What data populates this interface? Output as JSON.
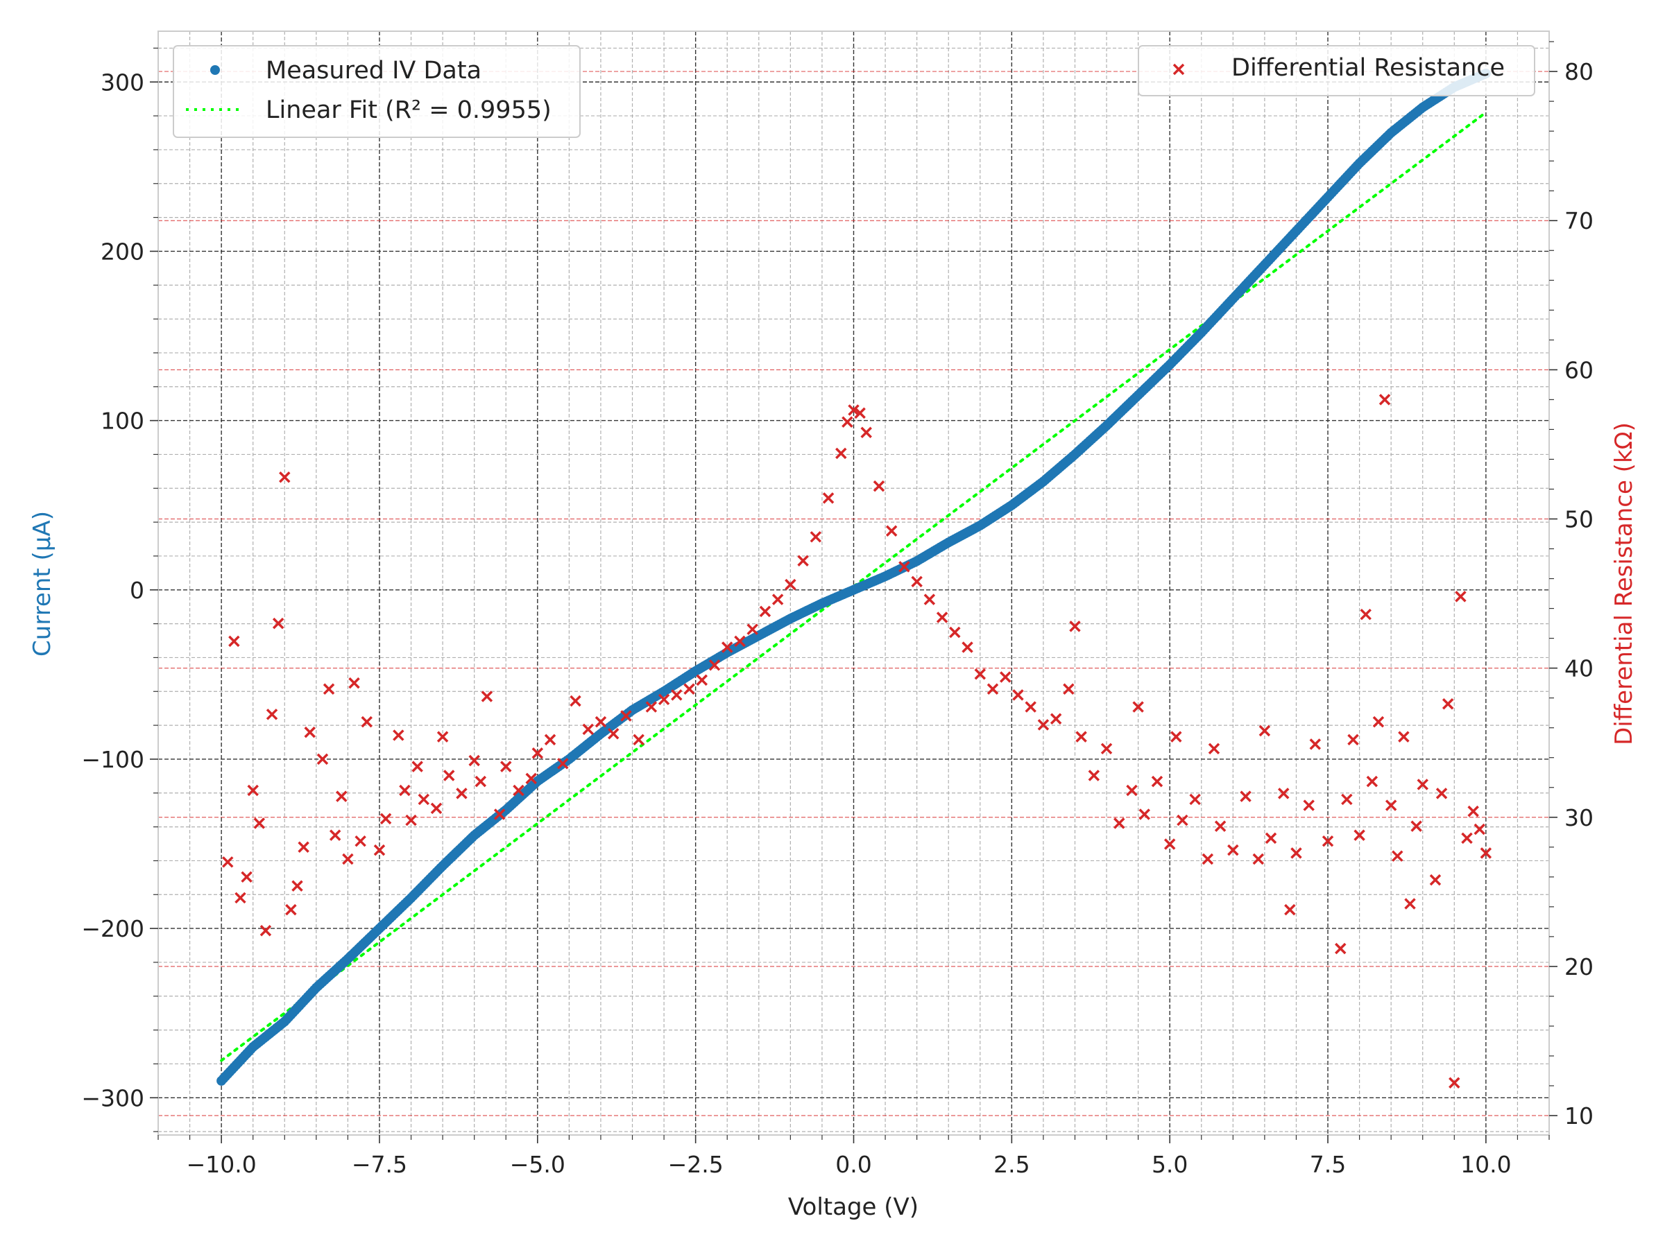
{
  "chart_data": {
    "type": "scatter",
    "xlabel": "Voltage (V)",
    "ylabel": "Current (μA)",
    "y2label": "Differential Resistance (kΩ)",
    "xlim": [
      -11.0,
      11.0
    ],
    "ylim": [
      -322,
      330
    ],
    "y2lim": [
      8.7,
      82.7
    ],
    "xticks": [
      -10.0,
      -7.5,
      -5.0,
      -2.5,
      0.0,
      2.5,
      5.0,
      7.5,
      10.0
    ],
    "xtick_labels": [
      "−10.0",
      "−7.5",
      "−5.0",
      "−2.5",
      "0.0",
      "2.5",
      "5.0",
      "7.5",
      "10.0"
    ],
    "yticks": [
      -300,
      -200,
      -100,
      0,
      100,
      200,
      300
    ],
    "ytick_labels": [
      "−300",
      "−200",
      "−100",
      "0",
      "100",
      "200",
      "300"
    ],
    "y2ticks": [
      10,
      20,
      30,
      40,
      50,
      60,
      70,
      80
    ],
    "y2tick_labels": [
      "10",
      "20",
      "30",
      "40",
      "50",
      "60",
      "70",
      "80"
    ],
    "grid": true,
    "colors": {
      "iv": "#1f77b4",
      "fit": "#00ff00",
      "resistance": "#d62728",
      "major_grid": "#333333",
      "minor_grid": "#b0b0b0",
      "frame": "#cccccc"
    },
    "legend_left": {
      "position": "top-left",
      "entries": [
        {
          "label": "Measured IV Data",
          "marker": "dot"
        },
        {
          "label": "Linear Fit (R² = 0.9955)",
          "marker": "dotted-line"
        }
      ]
    },
    "legend_right": {
      "position": "top-right",
      "entries": [
        {
          "label": "Differential Resistance",
          "marker": "x"
        }
      ]
    },
    "series": [
      {
        "name": "Measured IV Data",
        "kind": "scatter-dense",
        "axis": "left",
        "points": [
          [
            -10.0,
            -290
          ],
          [
            -9.5,
            -270
          ],
          [
            -9.0,
            -255
          ],
          [
            -8.5,
            -235
          ],
          [
            -8.0,
            -218
          ],
          [
            -7.5,
            -200
          ],
          [
            -7.0,
            -182
          ],
          [
            -6.5,
            -163
          ],
          [
            -6.0,
            -145
          ],
          [
            -5.5,
            -130
          ],
          [
            -5.0,
            -113
          ],
          [
            -4.5,
            -100
          ],
          [
            -4.0,
            -85
          ],
          [
            -3.5,
            -71
          ],
          [
            -3.0,
            -60
          ],
          [
            -2.5,
            -48
          ],
          [
            -2.0,
            -37
          ],
          [
            -1.5,
            -27
          ],
          [
            -1.0,
            -17
          ],
          [
            -0.5,
            -8
          ],
          [
            0.0,
            0
          ],
          [
            0.5,
            8
          ],
          [
            1.0,
            17
          ],
          [
            1.5,
            28
          ],
          [
            2.0,
            38
          ],
          [
            2.5,
            50
          ],
          [
            3.0,
            64
          ],
          [
            3.5,
            80
          ],
          [
            4.0,
            97
          ],
          [
            4.5,
            115
          ],
          [
            5.0,
            133
          ],
          [
            5.5,
            152
          ],
          [
            6.0,
            172
          ],
          [
            6.5,
            192
          ],
          [
            7.0,
            212
          ],
          [
            7.5,
            232
          ],
          [
            8.0,
            252
          ],
          [
            8.5,
            270
          ],
          [
            9.0,
            285
          ],
          [
            9.5,
            297
          ],
          [
            10.0,
            305
          ]
        ]
      },
      {
        "name": "Linear Fit (R² = 0.9955)",
        "kind": "line",
        "axis": "left",
        "points": [
          [
            -10.0,
            -278
          ],
          [
            10.0,
            282
          ]
        ]
      },
      {
        "name": "Differential Resistance",
        "kind": "scatter-x",
        "axis": "right",
        "points": [
          [
            -9.9,
            27
          ],
          [
            -9.8,
            41.8
          ],
          [
            -9.7,
            24.6
          ],
          [
            -9.6,
            26
          ],
          [
            -9.5,
            31.8
          ],
          [
            -9.4,
            29.6
          ],
          [
            -9.3,
            22.4
          ],
          [
            -9.2,
            36.9
          ],
          [
            -9.1,
            43
          ],
          [
            -9.0,
            52.8
          ],
          [
            -8.9,
            23.8
          ],
          [
            -8.8,
            25.4
          ],
          [
            -8.7,
            28
          ],
          [
            -8.6,
            35.7
          ],
          [
            -8.4,
            33.9
          ],
          [
            -8.3,
            38.6
          ],
          [
            -8.2,
            28.8
          ],
          [
            -8.1,
            31.4
          ],
          [
            -8.0,
            27.2
          ],
          [
            -7.9,
            39
          ],
          [
            -7.8,
            28.4
          ],
          [
            -7.7,
            36.4
          ],
          [
            -7.5,
            27.8
          ],
          [
            -7.4,
            29.9
          ],
          [
            -7.2,
            35.5
          ],
          [
            -7.1,
            31.8
          ],
          [
            -7.0,
            29.8
          ],
          [
            -6.9,
            33.4
          ],
          [
            -6.8,
            31.2
          ],
          [
            -6.6,
            30.6
          ],
          [
            -6.5,
            35.4
          ],
          [
            -6.4,
            32.8
          ],
          [
            -6.2,
            31.6
          ],
          [
            -6.0,
            33.8
          ],
          [
            -5.9,
            32.4
          ],
          [
            -5.8,
            38.1
          ],
          [
            -5.6,
            30.2
          ],
          [
            -5.5,
            33.4
          ],
          [
            -5.3,
            31.8
          ],
          [
            -5.1,
            32.6
          ],
          [
            -5.0,
            34.3
          ],
          [
            -4.8,
            35.2
          ],
          [
            -4.6,
            33.6
          ],
          [
            -4.4,
            37.8
          ],
          [
            -4.2,
            35.9
          ],
          [
            -4.0,
            36.4
          ],
          [
            -3.8,
            35.6
          ],
          [
            -3.6,
            36.8
          ],
          [
            -3.4,
            35.2
          ],
          [
            -3.2,
            37.4
          ],
          [
            -3.0,
            37.9
          ],
          [
            -2.8,
            38.2
          ],
          [
            -2.6,
            38.6
          ],
          [
            -2.4,
            39.2
          ],
          [
            -2.2,
            40.2
          ],
          [
            -2.0,
            41.4
          ],
          [
            -1.8,
            41.8
          ],
          [
            -1.6,
            42.6
          ],
          [
            -1.4,
            43.8
          ],
          [
            -1.2,
            44.6
          ],
          [
            -1.0,
            45.6
          ],
          [
            -0.8,
            47.2
          ],
          [
            -0.6,
            48.8
          ],
          [
            -0.4,
            51.4
          ],
          [
            -0.2,
            54.4
          ],
          [
            -0.1,
            56.5
          ],
          [
            0.0,
            57.3
          ],
          [
            0.1,
            57.1
          ],
          [
            0.2,
            55.8
          ],
          [
            0.4,
            52.2
          ],
          [
            0.6,
            49.2
          ],
          [
            0.8,
            46.8
          ],
          [
            1.0,
            45.8
          ],
          [
            1.2,
            44.6
          ],
          [
            1.4,
            43.4
          ],
          [
            1.6,
            42.4
          ],
          [
            1.8,
            41.4
          ],
          [
            2.0,
            39.6
          ],
          [
            2.2,
            38.6
          ],
          [
            2.4,
            39.4
          ],
          [
            2.6,
            38.2
          ],
          [
            2.8,
            37.4
          ],
          [
            3.0,
            36.2
          ],
          [
            3.2,
            36.6
          ],
          [
            3.4,
            38.6
          ],
          [
            3.5,
            42.8
          ],
          [
            3.6,
            35.4
          ],
          [
            3.8,
            32.8
          ],
          [
            4.0,
            34.6
          ],
          [
            4.2,
            29.6
          ],
          [
            4.4,
            31.8
          ],
          [
            4.5,
            37.4
          ],
          [
            4.6,
            30.2
          ],
          [
            4.8,
            32.4
          ],
          [
            5.0,
            28.2
          ],
          [
            5.1,
            35.4
          ],
          [
            5.2,
            29.8
          ],
          [
            5.4,
            31.2
          ],
          [
            5.6,
            27.2
          ],
          [
            5.7,
            34.6
          ],
          [
            5.8,
            29.4
          ],
          [
            6.0,
            27.8
          ],
          [
            6.2,
            31.4
          ],
          [
            6.4,
            27.2
          ],
          [
            6.5,
            35.8
          ],
          [
            6.6,
            28.6
          ],
          [
            6.8,
            31.6
          ],
          [
            6.9,
            23.8
          ],
          [
            7.0,
            27.6
          ],
          [
            7.2,
            30.8
          ],
          [
            7.3,
            34.9
          ],
          [
            7.5,
            28.4
          ],
          [
            7.7,
            21.2
          ],
          [
            7.8,
            31.2
          ],
          [
            7.9,
            35.2
          ],
          [
            8.0,
            28.8
          ],
          [
            8.1,
            43.6
          ],
          [
            8.2,
            32.4
          ],
          [
            8.3,
            36.4
          ],
          [
            8.4,
            58
          ],
          [
            8.5,
            30.8
          ],
          [
            8.6,
            27.4
          ],
          [
            8.7,
            35.4
          ],
          [
            8.8,
            24.2
          ],
          [
            8.9,
            29.4
          ],
          [
            9.0,
            32.2
          ],
          [
            9.2,
            25.8
          ],
          [
            9.3,
            31.6
          ],
          [
            9.4,
            37.6
          ],
          [
            9.5,
            12.2
          ],
          [
            9.6,
            44.8
          ],
          [
            9.7,
            28.6
          ],
          [
            9.8,
            30.4
          ],
          [
            9.9,
            29.2
          ],
          [
            10.0,
            27.6
          ]
        ]
      }
    ]
  }
}
